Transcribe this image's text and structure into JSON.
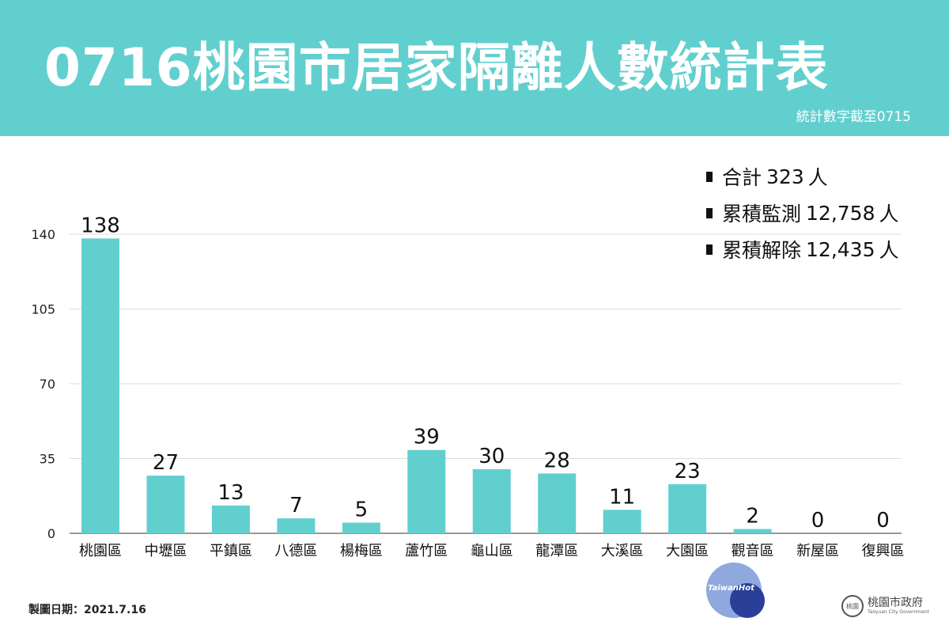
{
  "header": {
    "title": "0716桃園市居家隔離人數統計表",
    "subtitle": "統計數字截至0715",
    "background_color": "#62cfcf"
  },
  "summary": [
    {
      "label": "合計",
      "value": "323",
      "unit": "人"
    },
    {
      "label": "累積監測",
      "value": "12,758",
      "unit": "人"
    },
    {
      "label": "累積解除",
      "value": "12,435",
      "unit": "人"
    }
  ],
  "chart_data": {
    "type": "bar",
    "categories": [
      "桃園區",
      "中壢區",
      "平鎮區",
      "八德區",
      "楊梅區",
      "蘆竹區",
      "龜山區",
      "龍潭區",
      "大溪區",
      "大園區",
      "觀音區",
      "新屋區",
      "復興區"
    ],
    "values": [
      138,
      27,
      13,
      7,
      5,
      39,
      30,
      28,
      11,
      23,
      2,
      0,
      0
    ],
    "title": "",
    "xlabel": "",
    "ylabel": "",
    "ylim": [
      0,
      140
    ],
    "yticks": [
      0,
      35,
      70,
      105,
      140
    ],
    "grid": true,
    "bar_color": "#62cfcf",
    "data_labels": true
  },
  "footer": {
    "date_label": "製圖日期：2021.7.16",
    "watermark": "TaiwanHot",
    "gov_name": "桃園市政府",
    "gov_name_en": "Taoyuan City Government",
    "gov_seal_text": "桃園"
  }
}
